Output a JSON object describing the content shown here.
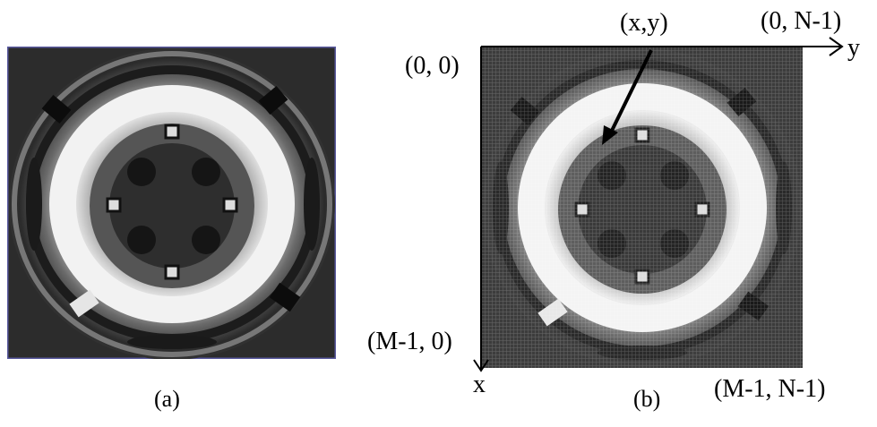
{
  "panel_a": {
    "caption": "(a)"
  },
  "panel_b": {
    "caption": "(b)",
    "coords": {
      "origin": "(0, 0)",
      "top_right": "(0, N-1)",
      "bottom_left": "(M-1, 0)",
      "bottom_right": "(M-1, N-1)",
      "pixel": "(x,y)"
    },
    "axes": {
      "horizontal": "y",
      "vertical": "x"
    }
  },
  "colors": {
    "frame_a": "#5a5aa0",
    "axis": "#000000"
  }
}
